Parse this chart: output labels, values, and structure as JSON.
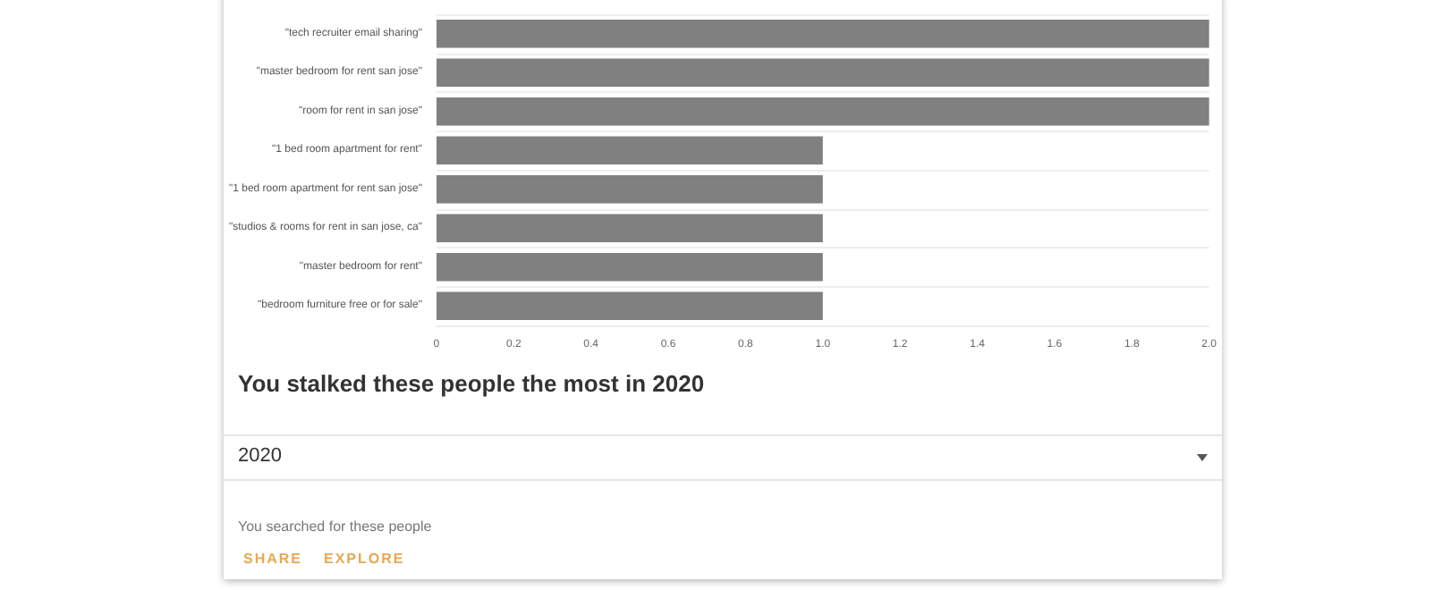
{
  "chart_data": {
    "type": "bar",
    "orientation": "horizontal",
    "title": "You stalked these people the most in 2020",
    "categories": [
      "\"tech recruiter email sharing\"",
      "\"master bedroom for rent san jose\"",
      "\"room for rent in san jose\"",
      "\"1 bed room apartment for rent\"",
      "\"1 bed room apartment for rent san jose\"",
      "\"studios & rooms for rent in san jose, ca\"",
      "\"master bedroom for rent\"",
      "\"bedroom furniture free or for sale\""
    ],
    "values": [
      2,
      2,
      2,
      1,
      1,
      1,
      1,
      1
    ],
    "color": "#808080",
    "xlim": [
      0,
      2
    ],
    "xticks": [
      0,
      0.2,
      0.4,
      0.6,
      0.8,
      {
        "value": 1,
        "label": "1.0"
      },
      1.2,
      1.4,
      1.6,
      1.8,
      {
        "value": 2,
        "label": "2.0"
      }
    ],
    "grid": "y",
    "annotations": [
      "2020",
      "You searched for these people",
      "SHARE",
      "EXPLORE"
    ]
  }
}
